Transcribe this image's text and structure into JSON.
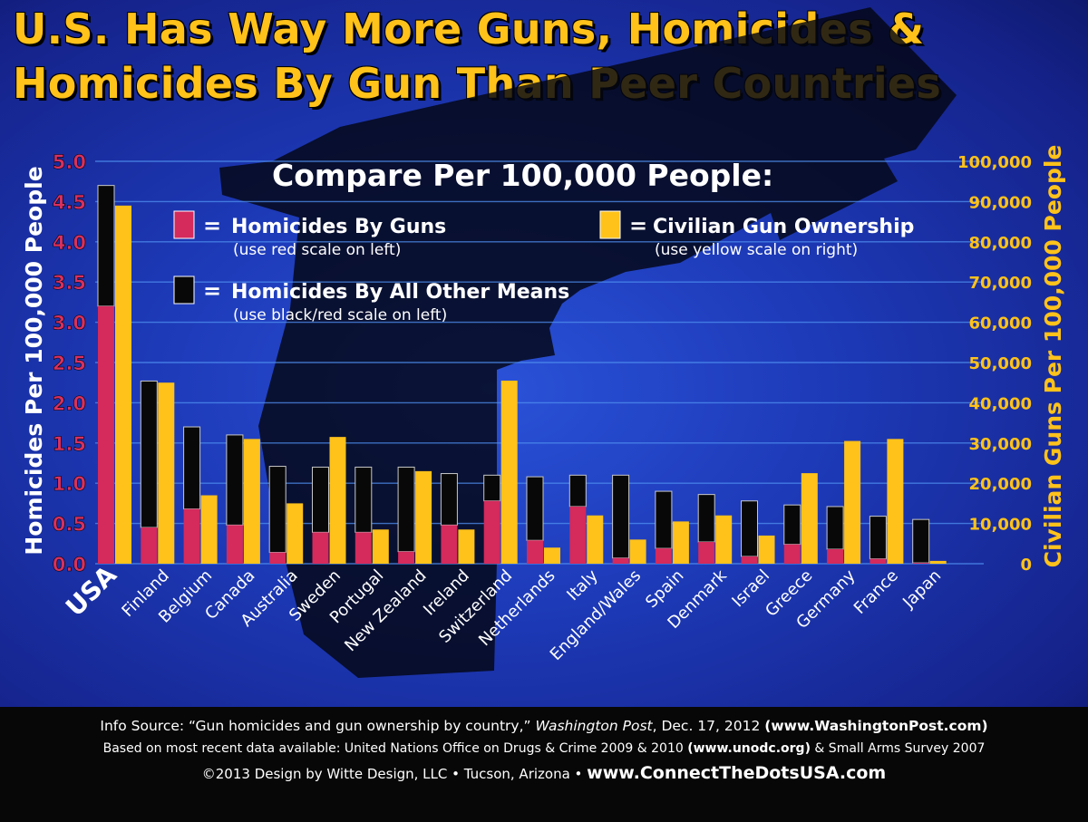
{
  "title_line1": "U.S. Has Way More Guns, Homicides &",
  "title_line2": "Homicides By Gun Than Peer Countries",
  "legend": {
    "heading": "Compare Per 100,000 People:",
    "guns": {
      "label": "Homicides By Guns",
      "note": "(use red scale on left)"
    },
    "other": {
      "label": "Homicides By All Other Means",
      "note": "(use black/red scale on left)"
    },
    "ownership": {
      "label": "Civilian Gun Ownership",
      "note": "(use yellow scale on right)"
    },
    "eq": "="
  },
  "colors": {
    "guns": "#d42a5c",
    "other": "#080808",
    "ownership": "#ffc21a",
    "left_axis": "#d9305e",
    "right_axis": "#ffc21a"
  },
  "footer": {
    "line1_a": "Info Source: “Gun homicides and gun ownership by country,” ",
    "line1_pub": "Washington Post",
    "line1_b": ", Dec. 17, 2012 ",
    "line1_url": "(www.WashingtonPost.com)",
    "line2_a": "Based on most recent data available: United Nations Office on Drugs & Crime 2009 & 2010 ",
    "line2_url": "(www.unodc.org)",
    "line2_b": " & Small Arms Survey 2007",
    "line3_a": "©2013 Design by Witte Design, LLC • Tucson, Arizona  •  ",
    "line3_url": "www.ConnectTheDotsUSA.com"
  },
  "chart_data": {
    "type": "bar",
    "categories": [
      "USA",
      "Finland",
      "Belgium",
      "Canada",
      "Australia",
      "Sweden",
      "Portugal",
      "New Zealand",
      "Ireland",
      "Switzerland",
      "Netherlands",
      "Italy",
      "England/Wales",
      "Spain",
      "Denmark",
      "Israel",
      "Greece",
      "Germany",
      "France",
      "Japan"
    ],
    "series": [
      {
        "name": "Homicides By Guns",
        "axis": "left",
        "values": [
          3.2,
          0.45,
          0.68,
          0.48,
          0.14,
          0.39,
          0.39,
          0.15,
          0.48,
          0.78,
          0.29,
          0.71,
          0.07,
          0.19,
          0.27,
          0.09,
          0.24,
          0.18,
          0.06,
          0.01
        ]
      },
      {
        "name": "Homicides By All Other Means",
        "axis": "left",
        "values": [
          1.5,
          1.82,
          1.02,
          1.12,
          1.07,
          0.81,
          0.81,
          1.05,
          0.64,
          0.32,
          0.79,
          0.39,
          1.03,
          0.71,
          0.59,
          0.69,
          0.49,
          0.53,
          0.53,
          0.54
        ]
      },
      {
        "name": "Civilian Gun Ownership",
        "axis": "right",
        "values": [
          89000,
          45000,
          17000,
          31000,
          15000,
          31500,
          8500,
          23000,
          8500,
          45500,
          4000,
          12000,
          6000,
          10500,
          12000,
          7000,
          22500,
          30500,
          31000,
          700
        ]
      }
    ],
    "left_axis": {
      "label": "Homicides Per 100,000 People",
      "ticks": [
        "0.0",
        "0.5",
        "1.0",
        "1.5",
        "2.0",
        "2.5",
        "3.0",
        "3.5",
        "4.0",
        "4.5",
        "5.0"
      ],
      "range": [
        0,
        5
      ]
    },
    "right_axis": {
      "label": "Civilian Guns Per 100,000 People",
      "ticks": [
        "0",
        "10,000",
        "20,000",
        "30,000",
        "40,000",
        "50,000",
        "60,000",
        "70,000",
        "80,000",
        "90,000",
        "100,000"
      ],
      "range": [
        0,
        100000
      ]
    },
    "grid": true
  }
}
